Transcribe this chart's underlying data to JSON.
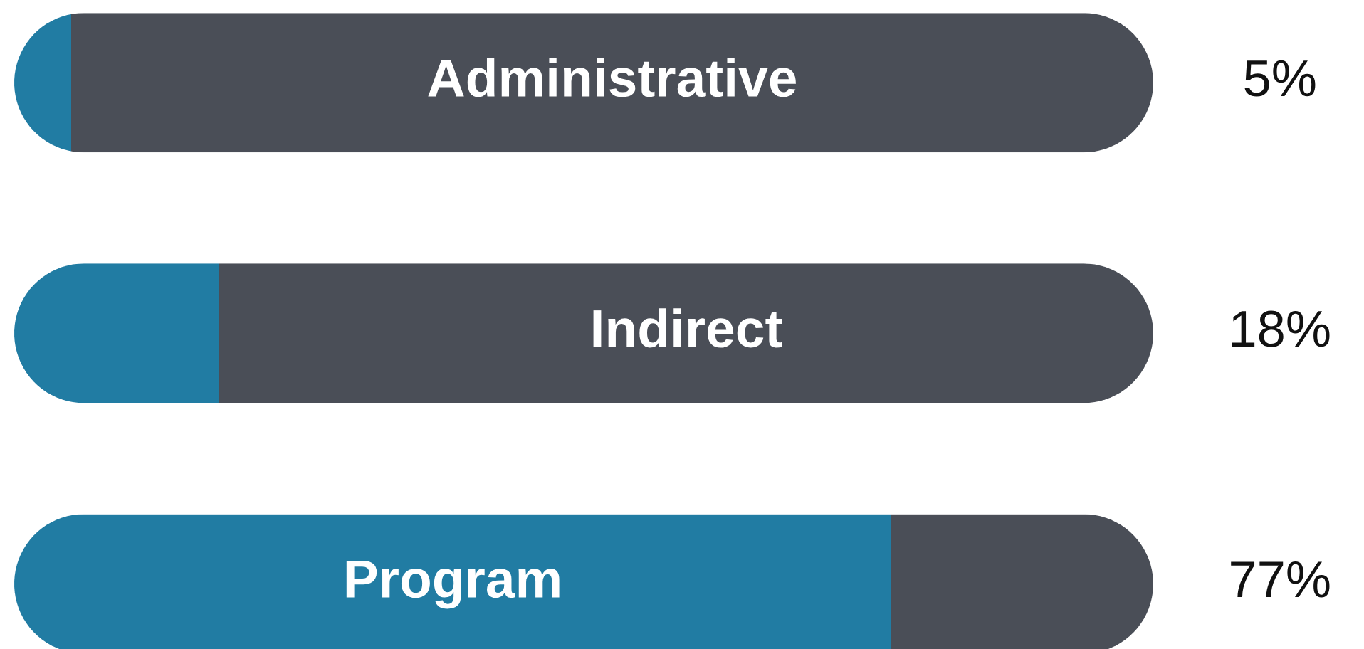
{
  "chart_data": {
    "type": "bar",
    "orientation": "horizontal",
    "stacked": true,
    "categories": [
      "Administrative",
      "Indirect",
      "Program"
    ],
    "series": [
      {
        "color": "#217ca3",
        "values": [
          5,
          18,
          77
        ],
        "value_labels": [
          "5%",
          "18%",
          "77%"
        ]
      },
      {
        "color": "#4a4e57",
        "values": [
          95,
          82,
          23
        ]
      }
    ],
    "xlim": [
      0,
      100
    ]
  }
}
